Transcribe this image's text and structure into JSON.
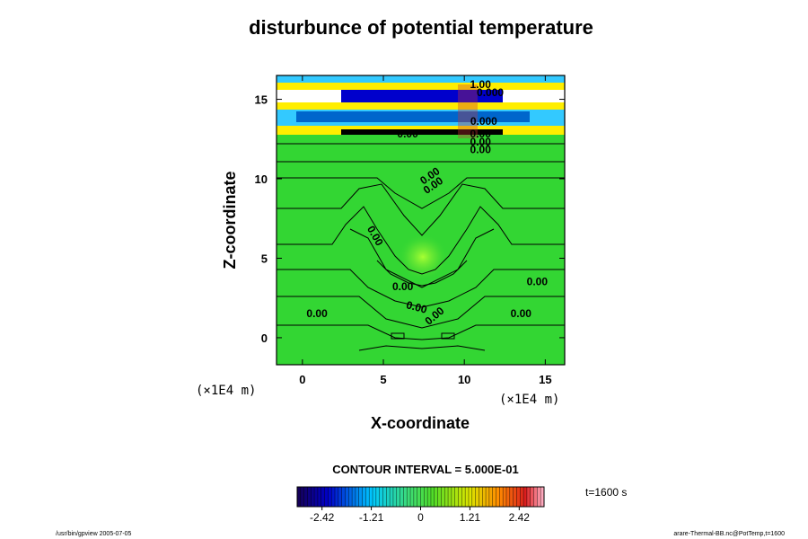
{
  "title": "disturbunce of potential temperature",
  "colors": {
    "background_field": "#33d633",
    "contour_line": "#000000",
    "top_band_yellow": "#ffee00",
    "top_band_blue": "#0000cc",
    "top_band_cyan": "#33c9ff"
  },
  "chart_data": {
    "type": "heatmap",
    "title": "disturbunce of potential temperature",
    "xlabel": "X-coordinate",
    "ylabel": "Z-coordinate",
    "x_unit": "(×1E4 m)",
    "z_unit": "(×1E4 m)",
    "xlim": [
      -1.6,
      16.2
    ],
    "zlim": [
      -1.7,
      16.5
    ],
    "x_ticks": [
      0,
      5,
      10,
      15
    ],
    "z_ticks": [
      0,
      5,
      10,
      15
    ],
    "thermal_center": {
      "x": 7.5,
      "z": 5.0,
      "value": 0.4
    },
    "contour_labels": [
      {
        "text": "0.00",
        "x": 8.0,
        "z": 10.0,
        "rotate": -35
      },
      {
        "text": "0.00",
        "x": 8.2,
        "z": 9.4,
        "rotate": -35
      },
      {
        "text": "0.00",
        "x": 4.3,
        "z": 6.3,
        "rotate": 60
      },
      {
        "text": "0.00",
        "x": 6.2,
        "z": 3.0,
        "rotate": 0
      },
      {
        "text": "0.00",
        "x": 7.0,
        "z": 1.7,
        "rotate": 15
      },
      {
        "text": "0.00",
        "x": 8.3,
        "z": 1.2,
        "rotate": -40
      },
      {
        "text": "0.00",
        "x": 0.9,
        "z": 1.3,
        "rotate": 0
      },
      {
        "text": "0.00",
        "x": 13.5,
        "z": 1.3,
        "rotate": 0
      },
      {
        "text": "0.00",
        "x": 14.5,
        "z": 3.3,
        "rotate": 0
      },
      {
        "text": "0.00",
        "x": 11.0,
        "z": 11.6,
        "rotate": 0
      },
      {
        "text": "0.00",
        "x": 11.0,
        "z": 12.1,
        "rotate": 0
      },
      {
        "text": "0.00",
        "x": 11.0,
        "z": 12.6,
        "rotate": 0
      },
      {
        "text": "0.00",
        "x": 6.5,
        "z": 12.6,
        "rotate": 0
      },
      {
        "text": "0.000",
        "x": 11.2,
        "z": 13.4,
        "rotate": 0
      },
      {
        "text": "1.00",
        "x": 11.0,
        "z": 15.7,
        "rotate": 0
      },
      {
        "text": "0.000",
        "x": 11.6,
        "z": 15.2,
        "rotate": 0
      }
    ],
    "colorbar": {
      "ticks": [
        "-2.42",
        "-1.21",
        "0",
        "1.21",
        "2.42"
      ],
      "range": [
        -3.03,
        3.03
      ]
    }
  },
  "footer": {
    "contour_interval": "CONTOUR INTERVAL = 5.000E-01",
    "time": "t=1600 s",
    "left_note": "/usr/bin/gpview 2005-07-05",
    "right_note": "arare-Thermal-BB.nc@PotTemp,t=1600"
  }
}
